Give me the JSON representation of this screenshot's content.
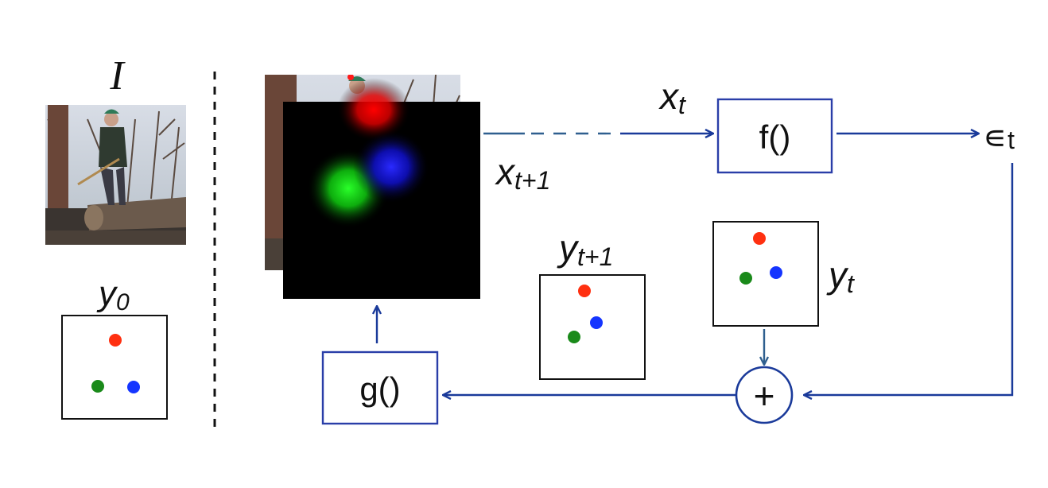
{
  "image_label": "I",
  "y0": {
    "base": "y",
    "subscript": "0"
  },
  "xt": {
    "base": "x",
    "subscript": "t"
  },
  "xt1": {
    "base": "x",
    "subscript": "t+1"
  },
  "yt": {
    "base": "y",
    "subscript": "t"
  },
  "yt1": {
    "base": "y",
    "subscript": "t+1"
  },
  "f_label": "f()",
  "g_label": "g()",
  "epsilon": {
    "base": "∊",
    "subscript": "t"
  },
  "plus_label": "+",
  "colors": {
    "arrow": "#1a3a9a",
    "arrow_light": "#2f5f8f",
    "box_border": "#2a3ea8",
    "red_dot": "#ff3010",
    "green_dot": "#1a8a1a",
    "blue_dot": "#1535ff"
  },
  "icons": {
    "photo": "person-with-axe-photo",
    "heatmap": "rgb-keypoint-heatmap"
  }
}
